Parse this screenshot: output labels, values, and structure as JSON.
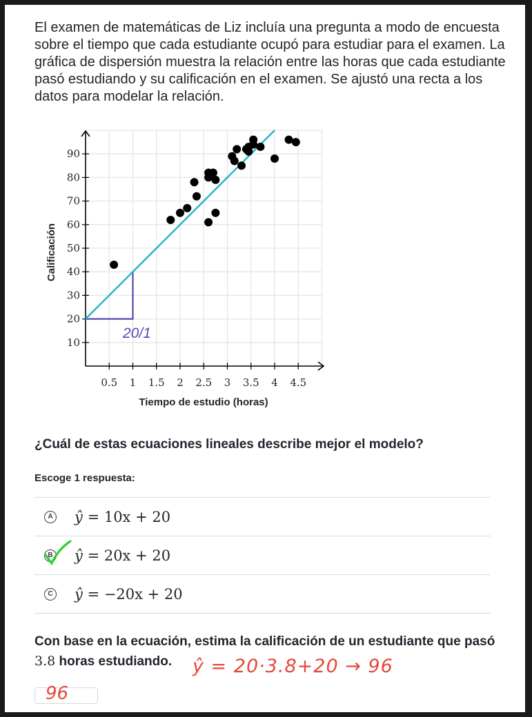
{
  "intro": "El examen de matemáticas de Liz incluía una pregunta a modo de encuesta sobre el tiempo que cada estudiante ocupó para estudiar para el examen. La gráfica de dispersión muestra la relación entre las horas que cada estudiante pasó estudiando y su calificación en el examen. Se ajustó una recta a los datos para modelar la relación.",
  "chart_data": {
    "type": "scatter",
    "xlabel": "Tiempo de estudio (horas)",
    "ylabel": "Calificación",
    "xlim": [
      0,
      5
    ],
    "ylim": [
      0,
      100
    ],
    "x_ticks": [
      "0.5",
      "1",
      "1.5",
      "2",
      "2.5",
      "3",
      "3.5",
      "4",
      "4.5"
    ],
    "y_ticks": [
      "10",
      "20",
      "30",
      "40",
      "50",
      "60",
      "70",
      "80",
      "90"
    ],
    "grid": true,
    "points": [
      [
        0.6,
        43
      ],
      [
        1.8,
        62
      ],
      [
        2.0,
        65
      ],
      [
        2.15,
        67
      ],
      [
        2.3,
        78
      ],
      [
        2.35,
        72
      ],
      [
        2.6,
        82
      ],
      [
        2.6,
        80
      ],
      [
        2.6,
        61
      ],
      [
        2.7,
        82
      ],
      [
        2.75,
        79
      ],
      [
        2.75,
        65
      ],
      [
        3.1,
        89
      ],
      [
        3.15,
        87
      ],
      [
        3.2,
        92
      ],
      [
        3.3,
        85
      ],
      [
        3.4,
        92
      ],
      [
        3.45,
        93
      ],
      [
        3.45,
        91
      ],
      [
        3.55,
        96
      ],
      [
        3.55,
        94
      ],
      [
        3.7,
        93
      ],
      [
        4.0,
        88
      ],
      [
        4.3,
        96
      ],
      [
        4.45,
        95
      ]
    ],
    "fit_line": {
      "slope": 20,
      "intercept": 20,
      "color": "#1fb3c6"
    },
    "slope_triangle": {
      "x0": 0,
      "x1": 1,
      "y0": 20,
      "y1": 40,
      "color": "#5746b7",
      "annotation": "20/1"
    }
  },
  "question": "¿Cuál de estas ecuaciones lineales describe mejor el modelo?",
  "instruction": "Escoge 1 respuesta:",
  "choices": [
    {
      "letter": "A",
      "lhs": "ŷ",
      "rhs": "= 10x + 20",
      "checked": false
    },
    {
      "letter": "B",
      "lhs": "ŷ",
      "rhs": "= 20x + 20",
      "checked": true
    },
    {
      "letter": "C",
      "lhs": "ŷ",
      "rhs": "= −20x + 20",
      "checked": false
    }
  ],
  "question2_pre": "Con base en la ecuación, estima la calificación de un estudiante que pasó",
  "question2_num": "3.8",
  "question2_post": "horas estudiando.",
  "handwritten_calc": "ŷ = 20·3.8+20 → 96",
  "handwritten_answer": "96",
  "colors": {
    "text": "#21242c",
    "handwriting": "#e7473c",
    "check": "#2bd12b",
    "fit_line": "#1fb3c6",
    "triangle": "#5746b7"
  }
}
